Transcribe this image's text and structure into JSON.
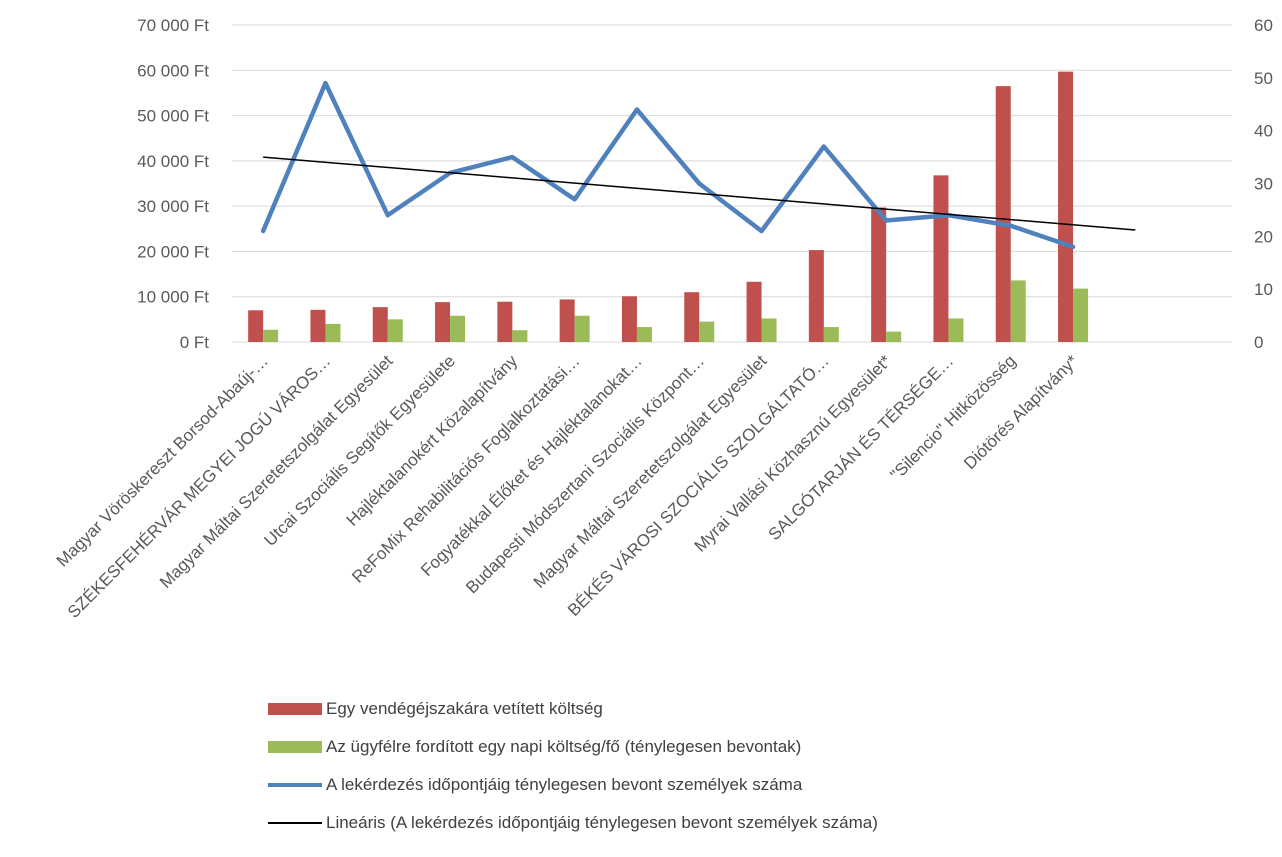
{
  "colors": {
    "bar1": "#C0504D",
    "bar2": "#9BBB59",
    "line": "#4F81BD",
    "trend": "#000000",
    "grid": "#D9D9D9",
    "text": "#595959"
  },
  "legend": {
    "s1": "Egy vendégéjszakára vetített költség",
    "s2": "Az ügyfélre fordított egy napi költség/fő (ténylegesen bevontak)",
    "s3": "A lekérdezés időpontjáig ténylegesen bevont személyek száma",
    "s4": "Lineáris (A lekérdezés időpontjáig ténylegesen bevont személyek száma)"
  },
  "chart_data": {
    "type": "bar",
    "categories": [
      "Magyar Vöröskereszt Borsod-Abaúj-…",
      "SZÉKESFEHÉRVÁR MEGYEI JOGÚ VÁROS…",
      "Magyar Máltai Szeretetszolgálat Egyesület",
      "Utcai Szociális Segítők Egyesülete",
      "Hajléktalanokért Közalapítvány",
      "ReFoMix Rehabilitációs Foglalkoztatási…",
      "Fogyatékkal Élőket és Hajléktalanokat…",
      "Budapesti Módszertani Szociális Központ…",
      "Magyar Máltai Szeretetszolgálat Egyesület",
      "BÉKÉS VÁROSI SZOCIÁLIS SZOLGÁLTATÓ…",
      "Myrai Vallási Közhasznú Egyesület*",
      "SALGÓTARJÁN ÉS TÉRSÉGE…",
      "\"Silencio\" Hitközösség",
      "Diótörés Alapítvány*"
    ],
    "series": [
      {
        "name": "Egy vendégéjszakára vetített költség",
        "axis": "left",
        "kind": "bar",
        "values": [
          7000,
          7100,
          7700,
          8800,
          8900,
          9400,
          10100,
          11000,
          13300,
          20300,
          29700,
          36800,
          56500,
          59700
        ]
      },
      {
        "name": "Az ügyfélre fordított egy napi költség/fő (ténylegesen bevontak)",
        "axis": "left",
        "kind": "bar",
        "values": [
          2700,
          4000,
          5000,
          5800,
          2600,
          5800,
          3300,
          4500,
          5200,
          3300,
          2300,
          5200,
          13600,
          11800
        ]
      },
      {
        "name": "A lekérdezés időpontjáig ténylegesen bevont személyek száma",
        "axis": "right",
        "kind": "line",
        "values": [
          21,
          49,
          24,
          32,
          35,
          27,
          44,
          30,
          21,
          37,
          23,
          24,
          22,
          18
        ]
      },
      {
        "name": "Lineáris (A lekérdezés időpontjáig ténylegesen bevont személyek száma)",
        "axis": "right",
        "kind": "trendline",
        "start": 35,
        "end": 21.2
      }
    ],
    "left_axis": {
      "ylim": [
        0,
        70000
      ],
      "ticks": [
        "0 Ft",
        "10 000 Ft",
        "20 000 Ft",
        "30 000 Ft",
        "40 000 Ft",
        "50 000 Ft",
        "60 000 Ft",
        "70 000 Ft"
      ]
    },
    "right_axis": {
      "ylim": [
        0,
        60
      ],
      "ticks": [
        "0",
        "10",
        "20",
        "30",
        "40",
        "50",
        "60"
      ]
    },
    "grid": true,
    "legend_position": "bottom"
  }
}
